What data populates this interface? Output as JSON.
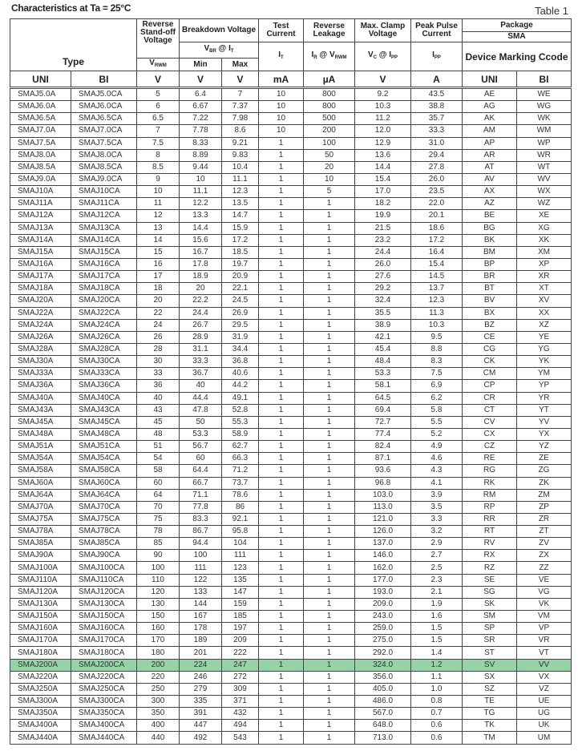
{
  "title": "Characteristics at Ta = 25°C",
  "table_number": "Table 1",
  "header": {
    "type": "Type",
    "standoff": "Reverse Stand-off Voltage",
    "breakdown": "Breakdown Voltage",
    "test_current": "Test Current",
    "leakage": "Reverse Leakage",
    "clamp": "Max. Clamp Voltage",
    "peak": "Peak Pulse Current",
    "package": "Package",
    "sma": "SMA",
    "marking": "Device Marking Ccode",
    "vbr_it": {
      "v": "V",
      "vsub": "BR",
      "at": " @ ",
      "i": "I",
      "isub": "T"
    },
    "it": {
      "i": "I",
      "isub": "T"
    },
    "ir_vrwm": {
      "i": "I",
      "isub": "R",
      "at": " @ ",
      "v": "V",
      "vsub": "RWM"
    },
    "vc_ipp": {
      "v": "V",
      "vsub": "C",
      "at": " @ ",
      "i": "I",
      "isub": "PP"
    },
    "ipp": {
      "i": "I",
      "isub": "PP"
    },
    "vrwm": {
      "v": "V",
      "vsub": "RWM"
    },
    "min": "Min",
    "max": "Max",
    "units": [
      "UNI",
      "BI",
      "V",
      "V",
      "V",
      "mA",
      "µA",
      "V",
      "A",
      "UNI",
      "BI"
    ]
  },
  "highlight_color": "#96d2a8",
  "highlighted_row": "SMAJ200A",
  "rows": [
    [
      "SMAJ5.0A",
      "SMAJ5.0CA",
      "5",
      "6.4",
      "7",
      "10",
      "800",
      "9.2",
      "43.5",
      "AE",
      "WE"
    ],
    [
      "SMAJ6.0A",
      "SMAJ6.0CA",
      "6",
      "6.67",
      "7.37",
      "10",
      "800",
      "10.3",
      "38.8",
      "AG",
      "WG"
    ],
    [
      "SMAJ6.5A",
      "SMAJ6.5CA",
      "6.5",
      "7.22",
      "7.98",
      "10",
      "500",
      "11.2",
      "35.7",
      "AK",
      "WK"
    ],
    [
      "SMAJ7.0A",
      "SMAJ7.0CA",
      "7",
      "7.78",
      "8.6",
      "10",
      "200",
      "12.0",
      "33.3",
      "AM",
      "WM"
    ],
    [
      "SMAJ7.5A",
      "SMAJ7.5CA",
      "7.5",
      "8.33",
      "9.21",
      "1",
      "100",
      "12.9",
      "31.0",
      "AP",
      "WP"
    ],
    [
      "SMAJ8.0A",
      "SMAJ8.0CA",
      "8",
      "8.89",
      "9.83",
      "1",
      "50",
      "13.6",
      "29.4",
      "AR",
      "WR"
    ],
    [
      "SMAJ8.5A",
      "SMAJ8.5CA",
      "8.5",
      "9.44",
      "10.4",
      "1",
      "20",
      "14.4",
      "27.8",
      "AT",
      "WT"
    ],
    [
      "SMAJ9.0A",
      "SMAJ9.0CA",
      "9",
      "10",
      "11.1",
      "1",
      "10",
      "15.4",
      "26.0",
      "AV",
      "WV"
    ],
    [
      "SMAJ10A",
      "SMAJ10CA",
      "10",
      "11.1",
      "12.3",
      "1",
      "5",
      "17.0",
      "23.5",
      "AX",
      "WX"
    ],
    [
      "SMAJ11A",
      "SMAJ11CA",
      "11",
      "12.2",
      "13.5",
      "1",
      "1",
      "18.2",
      "22.0",
      "AZ",
      "WZ"
    ],
    [
      "SMAJ12A",
      "SMAJ12CA",
      "12",
      "13.3",
      "14.7",
      "1",
      "1",
      "19.9",
      "20.1",
      "BE",
      "XE"
    ],
    [
      "SMAJ13A",
      "SMAJ13CA",
      "13",
      "14.4",
      "15.9",
      "1",
      "1",
      "21.5",
      "18.6",
      "BG",
      "XG"
    ],
    [
      "SMAJ14A",
      "SMAJ14CA",
      "14",
      "15.6",
      "17.2",
      "1",
      "1",
      "23.2",
      "17.2",
      "BK",
      "XK"
    ],
    [
      "SMAJ15A",
      "SMAJ15CA",
      "15",
      "16.7",
      "18.5",
      "1",
      "1",
      "24.4",
      "16.4",
      "BM",
      "XM"
    ],
    [
      "SMAJ16A",
      "SMAJ16CA",
      "16",
      "17.8",
      "19.7",
      "1",
      "1",
      "26.0",
      "15.4",
      "BP",
      "XP"
    ],
    [
      "SMAJ17A",
      "SMAJ17CA",
      "17",
      "18.9",
      "20.9",
      "1",
      "1",
      "27.6",
      "14.5",
      "BR",
      "XR"
    ],
    [
      "SMAJ18A",
      "SMAJ18CA",
      "18",
      "20",
      "22.1",
      "1",
      "1",
      "29.2",
      "13.7",
      "BT",
      "XT"
    ],
    [
      "SMAJ20A",
      "SMAJ20CA",
      "20",
      "22.2",
      "24.5",
      "1",
      "1",
      "32.4",
      "12.3",
      "BV",
      "XV"
    ],
    [
      "SMAJ22A",
      "SMAJ22CA",
      "22",
      "24.4",
      "26.9",
      "1",
      "1",
      "35.5",
      "11.3",
      "BX",
      "XX"
    ],
    [
      "SMAJ24A",
      "SMAJ24CA",
      "24",
      "26.7",
      "29.5",
      "1",
      "1",
      "38.9",
      "10.3",
      "BZ",
      "XZ"
    ],
    [
      "SMAJ26A",
      "SMAJ26CA",
      "26",
      "28.9",
      "31.9",
      "1",
      "1",
      "42.1",
      "9.5",
      "CE",
      "YE"
    ],
    [
      "SMAJ28A",
      "SMAJ28CA",
      "28",
      "31.1",
      "34.4",
      "1",
      "1",
      "45.4",
      "8.8",
      "CG",
      "YG"
    ],
    [
      "SMAJ30A",
      "SMAJ30CA",
      "30",
      "33.3",
      "36.8",
      "1",
      "1",
      "48.4",
      "8.3",
      "CK",
      "YK"
    ],
    [
      "SMAJ33A",
      "SMAJ33CA",
      "33",
      "36.7",
      "40.6",
      "1",
      "1",
      "53.3",
      "7.5",
      "CM",
      "YM"
    ],
    [
      "SMAJ36A",
      "SMAJ36CA",
      "36",
      "40",
      "44.2",
      "1",
      "1",
      "58.1",
      "6.9",
      "CP",
      "YP"
    ],
    [
      "SMAJ40A",
      "SMAJ40CA",
      "40",
      "44.4",
      "49.1",
      "1",
      "1",
      "64.5",
      "6.2",
      "CR",
      "YR"
    ],
    [
      "SMAJ43A",
      "SMAJ43CA",
      "43",
      "47.8",
      "52.8",
      "1",
      "1",
      "69.4",
      "5.8",
      "CT",
      "YT"
    ],
    [
      "SMAJ45A",
      "SMAJ45CA",
      "45",
      "50",
      "55.3",
      "1",
      "1",
      "72.7",
      "5.5",
      "CV",
      "YV"
    ],
    [
      "SMAJ48A",
      "SMAJ48CA",
      "48",
      "53.3",
      "58.9",
      "1",
      "1",
      "77.4",
      "5.2",
      "CX",
      "YX"
    ],
    [
      "SMAJ51A",
      "SMAJ51CA",
      "51",
      "56.7",
      "62.7",
      "1",
      "1",
      "82.4",
      "4.9",
      "CZ",
      "YZ"
    ],
    [
      "SMAJ54A",
      "SMAJ54CA",
      "54",
      "60",
      "66.3",
      "1",
      "1",
      "87.1",
      "4.6",
      "RE",
      "ZE"
    ],
    [
      "SMAJ58A",
      "SMAJ58CA",
      "58",
      "64.4",
      "71.2",
      "1",
      "1",
      "93.6",
      "4.3",
      "RG",
      "ZG"
    ],
    [
      "SMAJ60A",
      "SMAJ60CA",
      "60",
      "66.7",
      "73.7",
      "1",
      "1",
      "96.8",
      "4.1",
      "RK",
      "ZK"
    ],
    [
      "SMAJ64A",
      "SMAJ64CA",
      "64",
      "71.1",
      "78.6",
      "1",
      "1",
      "103.0",
      "3.9",
      "RM",
      "ZM"
    ],
    [
      "SMAJ70A",
      "SMAJ70CA",
      "70",
      "77.8",
      "86",
      "1",
      "1",
      "113.0",
      "3.5",
      "RP",
      "ZP"
    ],
    [
      "SMAJ75A",
      "SMAJ75CA",
      "75",
      "83.3",
      "92.1",
      "1",
      "1",
      "121.0",
      "3.3",
      "RR",
      "ZR"
    ],
    [
      "SMAJ78A",
      "SMAJ78CA",
      "78",
      "86.7",
      "95.8",
      "1",
      "1",
      "126.0",
      "3.2",
      "RT",
      "ZT"
    ],
    [
      "SMAJ85A",
      "SMAJ85CA",
      "85",
      "94.4",
      "104",
      "1",
      "1",
      "137.0",
      "2.9",
      "RV",
      "ZV"
    ],
    [
      "SMAJ90A",
      "SMAJ90CA",
      "90",
      "100",
      "111",
      "1",
      "1",
      "146.0",
      "2.7",
      "RX",
      "ZX"
    ],
    [
      "SMAJ100A",
      "SMAJ100CA",
      "100",
      "111",
      "123",
      "1",
      "1",
      "162.0",
      "2.5",
      "RZ",
      "ZZ"
    ],
    [
      "SMAJ110A",
      "SMAJ110CA",
      "110",
      "122",
      "135",
      "1",
      "1",
      "177.0",
      "2.3",
      "SE",
      "VE"
    ],
    [
      "SMAJ120A",
      "SMAJ120CA",
      "120",
      "133",
      "147",
      "1",
      "1",
      "193.0",
      "2.1",
      "SG",
      "VG"
    ],
    [
      "SMAJ130A",
      "SMAJ130CA",
      "130",
      "144",
      "159",
      "1",
      "1",
      "209.0",
      "1.9",
      "SK",
      "VK"
    ],
    [
      "SMAJ150A",
      "SMAJ150CA",
      "150",
      "167",
      "185",
      "1",
      "1",
      "243.0",
      "1.6",
      "SM",
      "VM"
    ],
    [
      "SMAJ160A",
      "SMAJ160CA",
      "160",
      "178",
      "197",
      "1",
      "1",
      "259.0",
      "1.5",
      "SP",
      "VP"
    ],
    [
      "SMAJ170A",
      "SMAJ170CA",
      "170",
      "189",
      "209",
      "1",
      "1",
      "275.0",
      "1.5",
      "SR",
      "VR"
    ],
    [
      "SMAJ180A",
      "SMAJ180CA",
      "180",
      "201",
      "222",
      "1",
      "1",
      "292.0",
      "1.4",
      "ST",
      "VT"
    ],
    [
      "SMAJ200A",
      "SMAJ200CA",
      "200",
      "224",
      "247",
      "1",
      "1",
      "324.0",
      "1.2",
      "SV",
      "VV"
    ],
    [
      "SMAJ220A",
      "SMAJ220CA",
      "220",
      "246",
      "272",
      "1",
      "1",
      "356.0",
      "1.1",
      "SX",
      "VX"
    ],
    [
      "SMAJ250A",
      "SMAJ250CA",
      "250",
      "279",
      "309",
      "1",
      "1",
      "405.0",
      "1.0",
      "SZ",
      "VZ"
    ],
    [
      "SMAJ300A",
      "SMAJ300CA",
      "300",
      "335",
      "371",
      "1",
      "1",
      "486.0",
      "0.8",
      "TE",
      "UE"
    ],
    [
      "SMAJ350A",
      "SMAJ350CA",
      "350",
      "391",
      "432",
      "1",
      "1",
      "567.0",
      "0.7",
      "TG",
      "UG"
    ],
    [
      "SMAJ400A",
      "SMAJ400CA",
      "400",
      "447",
      "494",
      "1",
      "1",
      "648.0",
      "0.6",
      "TK",
      "UK"
    ],
    [
      "SMAJ440A",
      "SMAJ440CA",
      "440",
      "492",
      "543",
      "1",
      "1",
      "713.0",
      "0.6",
      "TM",
      "UM"
    ]
  ]
}
